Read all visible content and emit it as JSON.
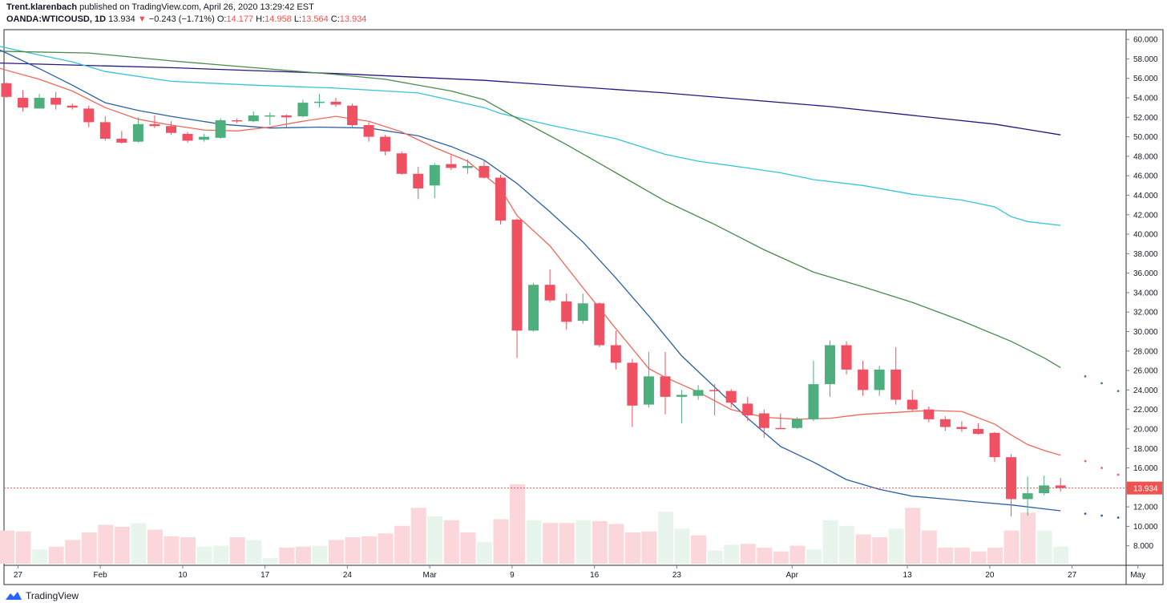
{
  "header": {
    "author": "Trent.klarenbach",
    "published_text": "published on TradingView.com, April 26, 2020 13:29:42 EST",
    "symbol": "OANDA:WTICOUSD, 1D",
    "last": "13.934",
    "change": "−0.243 (−1.71%)",
    "open_label": "O:",
    "open": "14.177",
    "high_label": "H:",
    "high": "14.958",
    "low_label": "L:",
    "low": "13.564",
    "close_label": "C:",
    "close": "13.934"
  },
  "footer": {
    "brand": "TradingView",
    "logo_icon": "tradingview-logo-icon"
  },
  "colors": {
    "up": "#4caf7d",
    "down": "#ef5062",
    "up_volume": "#e8f5ec",
    "down_volume": "#fbd6da",
    "ma_fast": "#f0685a",
    "ma_mid": "#2b5fa8",
    "ma_slow": "#4a8a4a",
    "ma_cyan": "#33c5d6",
    "ma_long": "#2a1580",
    "price_line": "#ef5350",
    "axis": "#787b86"
  },
  "chart_data": {
    "type": "candlestick",
    "y_axis": {
      "min": 6,
      "max": 61,
      "ticks": [
        "60.000",
        "58.000",
        "56.000",
        "54.000",
        "52.000",
        "50.000",
        "48.000",
        "46.000",
        "44.000",
        "42.000",
        "40.000",
        "38.000",
        "36.000",
        "34.000",
        "32.000",
        "30.000",
        "28.000",
        "26.000",
        "24.000",
        "22.000",
        "20.000",
        "18.000",
        "16.000",
        "14.000",
        "12.000",
        "10.000",
        "8.000"
      ]
    },
    "last_price_label": "13.934",
    "x_axis": {
      "labels": [
        {
          "text": "27",
          "idx": 0.7
        },
        {
          "text": "Feb",
          "idx": 5.7
        },
        {
          "text": "10",
          "idx": 10.7
        },
        {
          "text": "17",
          "idx": 15.7
        },
        {
          "text": "24",
          "idx": 20.7
        },
        {
          "text": "Mar",
          "idx": 25.7
        },
        {
          "text": "9",
          "idx": 30.7
        },
        {
          "text": "16",
          "idx": 35.7
        },
        {
          "text": "23",
          "idx": 40.7
        },
        {
          "text": "Apr",
          "idx": 47.7
        },
        {
          "text": "13",
          "idx": 54.7
        },
        {
          "text": "20",
          "idx": 59.7
        },
        {
          "text": "27",
          "idx": 64.7
        },
        {
          "text": "May",
          "idx": 68.7
        }
      ]
    },
    "candles": [
      [
        55.5,
        55.6,
        54.0,
        54.1
      ],
      [
        54.0,
        54.8,
        52.6,
        53.0
      ],
      [
        52.9,
        54.4,
        52.9,
        54.0
      ],
      [
        54.0,
        54.6,
        52.8,
        53.3
      ],
      [
        53.2,
        53.4,
        52.8,
        53.0
      ],
      [
        52.9,
        53.2,
        51.0,
        51.5
      ],
      [
        51.5,
        52.1,
        49.6,
        49.8
      ],
      [
        49.8,
        50.6,
        49.3,
        49.4
      ],
      [
        49.5,
        52.0,
        49.4,
        51.3
      ],
      [
        51.3,
        52.2,
        50.9,
        51.1
      ],
      [
        51.1,
        51.6,
        50.2,
        50.4
      ],
      [
        50.3,
        50.5,
        49.4,
        49.6
      ],
      [
        49.7,
        50.3,
        49.5,
        50.0
      ],
      [
        49.9,
        51.9,
        49.8,
        51.7
      ],
      [
        51.7,
        51.9,
        51.4,
        51.6
      ],
      [
        51.6,
        52.6,
        51.5,
        52.2
      ],
      [
        52.2,
        52.5,
        51.2,
        52.2
      ],
      [
        52.2,
        52.3,
        51.0,
        52.0
      ],
      [
        52.1,
        53.8,
        52.0,
        53.5
      ],
      [
        53.5,
        54.4,
        53.0,
        53.6
      ],
      [
        53.6,
        54.0,
        53.1,
        53.3
      ],
      [
        53.2,
        53.4,
        50.9,
        51.2
      ],
      [
        51.2,
        51.5,
        49.5,
        50.0
      ],
      [
        50.0,
        50.2,
        48.1,
        48.5
      ],
      [
        48.3,
        48.5,
        46.1,
        46.2
      ],
      [
        46.2,
        46.9,
        43.6,
        44.7
      ],
      [
        45.0,
        47.3,
        43.7,
        47.1
      ],
      [
        47.2,
        48.1,
        46.6,
        46.8
      ],
      [
        46.8,
        47.7,
        46.2,
        47.0
      ],
      [
        47.0,
        47.6,
        45.7,
        45.8
      ],
      [
        45.8,
        46.1,
        41.0,
        41.4
      ],
      [
        41.5,
        41.6,
        27.3,
        30.1
      ],
      [
        30.1,
        35.0,
        30.0,
        34.8
      ],
      [
        34.8,
        36.4,
        33.0,
        33.2
      ],
      [
        33.1,
        33.9,
        30.2,
        31.0
      ],
      [
        31.1,
        33.9,
        30.8,
        32.9
      ],
      [
        32.9,
        33.0,
        28.4,
        28.6
      ],
      [
        28.6,
        30.1,
        26.1,
        26.8
      ],
      [
        26.8,
        27.2,
        20.2,
        22.4
      ],
      [
        22.5,
        27.9,
        22.2,
        25.4
      ],
      [
        25.4,
        27.9,
        21.5,
        23.3
      ],
      [
        23.3,
        24.0,
        20.6,
        23.5
      ],
      [
        23.4,
        24.5,
        23.0,
        24.0
      ],
      [
        24.0,
        24.6,
        21.4,
        23.9
      ],
      [
        23.9,
        24.1,
        22.2,
        22.7
      ],
      [
        22.6,
        23.3,
        20.8,
        21.4
      ],
      [
        21.6,
        22.0,
        19.1,
        20.1
      ],
      [
        20.1,
        21.6,
        20.0,
        20.0
      ],
      [
        20.1,
        21.2,
        20.0,
        21.0
      ],
      [
        21.0,
        27.0,
        20.8,
        24.6
      ],
      [
        24.6,
        29.1,
        23.3,
        28.6
      ],
      [
        28.6,
        29.0,
        25.6,
        26.1
      ],
      [
        26.1,
        27.0,
        23.4,
        24.0
      ],
      [
        24.0,
        26.5,
        23.4,
        26.1
      ],
      [
        26.1,
        28.4,
        22.5,
        23.0
      ],
      [
        23.0,
        24.0,
        21.8,
        22.0
      ],
      [
        22.0,
        22.3,
        20.7,
        21.0
      ],
      [
        21.0,
        21.3,
        19.8,
        20.2
      ],
      [
        20.2,
        20.8,
        19.7,
        20.0
      ],
      [
        20.0,
        20.6,
        19.4,
        19.5
      ],
      [
        19.6,
        19.7,
        16.6,
        17.1
      ],
      [
        17.1,
        17.4,
        11.0,
        12.8
      ],
      [
        12.8,
        15.1,
        11.1,
        13.4
      ],
      [
        13.4,
        15.2,
        13.2,
        14.2
      ],
      [
        14.2,
        14.96,
        13.56,
        13.934
      ]
    ],
    "volume": [
      [
        0.35,
        "d"
      ],
      [
        0.34,
        "d"
      ],
      [
        0.15,
        "u"
      ],
      [
        0.18,
        "d"
      ],
      [
        0.25,
        "d"
      ],
      [
        0.33,
        "d"
      ],
      [
        0.41,
        "d"
      ],
      [
        0.39,
        "d"
      ],
      [
        0.43,
        "u"
      ],
      [
        0.36,
        "d"
      ],
      [
        0.29,
        "d"
      ],
      [
        0.28,
        "d"
      ],
      [
        0.18,
        "u"
      ],
      [
        0.19,
        "u"
      ],
      [
        0.28,
        "d"
      ],
      [
        0.25,
        "u"
      ],
      [
        0.06,
        "u"
      ],
      [
        0.17,
        "d"
      ],
      [
        0.18,
        "d"
      ],
      [
        0.19,
        "u"
      ],
      [
        0.25,
        "d"
      ],
      [
        0.28,
        "d"
      ],
      [
        0.29,
        "d"
      ],
      [
        0.32,
        "d"
      ],
      [
        0.4,
        "d"
      ],
      [
        0.59,
        "d"
      ],
      [
        0.5,
        "u"
      ],
      [
        0.46,
        "d"
      ],
      [
        0.33,
        "d"
      ],
      [
        0.23,
        "u"
      ],
      [
        0.47,
        "d"
      ],
      [
        0.84,
        "d"
      ],
      [
        0.46,
        "u"
      ],
      [
        0.43,
        "d"
      ],
      [
        0.43,
        "d"
      ],
      [
        0.46,
        "u"
      ],
      [
        0.45,
        "d"
      ],
      [
        0.42,
        "d"
      ],
      [
        0.33,
        "d"
      ],
      [
        0.34,
        "d"
      ],
      [
        0.55,
        "u"
      ],
      [
        0.37,
        "u"
      ],
      [
        0.3,
        "d"
      ],
      [
        0.14,
        "u"
      ],
      [
        0.2,
        "u"
      ],
      [
        0.21,
        "d"
      ],
      [
        0.17,
        "d"
      ],
      [
        0.13,
        "d"
      ],
      [
        0.19,
        "d"
      ],
      [
        0.15,
        "u"
      ],
      [
        0.46,
        "u"
      ],
      [
        0.4,
        "u"
      ],
      [
        0.31,
        "d"
      ],
      [
        0.28,
        "d"
      ],
      [
        0.37,
        "u"
      ],
      [
        0.59,
        "d"
      ],
      [
        0.35,
        "d"
      ],
      [
        0.17,
        "d"
      ],
      [
        0.17,
        "d"
      ],
      [
        0.13,
        "d"
      ],
      [
        0.17,
        "d"
      ],
      [
        0.35,
        "d"
      ],
      [
        0.54,
        "d"
      ],
      [
        0.35,
        "u"
      ],
      [
        0.18,
        "u"
      ]
    ],
    "moving_averages": [
      {
        "color_key": "ma_long",
        "points": [
          [
            -1,
            57.6
          ],
          [
            10,
            57.1
          ],
          [
            20,
            56.5
          ],
          [
            29,
            55.8
          ],
          [
            40,
            54.5
          ],
          [
            50,
            53.1
          ],
          [
            60,
            51.3
          ],
          [
            64,
            50.2
          ]
        ],
        "dots": []
      },
      {
        "color_key": "ma_cyan",
        "points": [
          [
            -1,
            59.5
          ],
          [
            2,
            58.4
          ],
          [
            4,
            57.7
          ],
          [
            6,
            56.7
          ],
          [
            10,
            55.7
          ],
          [
            15,
            55.3
          ],
          [
            20,
            55.0
          ],
          [
            25,
            54.5
          ],
          [
            29,
            53.0
          ],
          [
            30,
            52.4
          ],
          [
            33,
            51.2
          ],
          [
            37,
            49.8
          ],
          [
            40,
            48.2
          ],
          [
            42,
            47.5
          ],
          [
            45,
            46.8
          ],
          [
            47,
            46.3
          ],
          [
            49,
            45.6
          ],
          [
            52,
            45.0
          ],
          [
            55,
            44.1
          ],
          [
            58,
            43.5
          ],
          [
            60,
            42.8
          ],
          [
            61,
            41.8
          ],
          [
            62,
            41.3
          ],
          [
            64,
            40.9
          ]
        ],
        "dots": []
      },
      {
        "color_key": "ma_slow",
        "points": [
          [
            -1,
            58.8
          ],
          [
            5,
            58.6
          ],
          [
            10,
            57.8
          ],
          [
            15,
            57.1
          ],
          [
            20,
            56.4
          ],
          [
            23,
            55.9
          ],
          [
            27,
            54.7
          ],
          [
            29,
            53.8
          ],
          [
            31,
            51.9
          ],
          [
            34,
            49.2
          ],
          [
            37,
            46.3
          ],
          [
            40,
            43.4
          ],
          [
            43,
            41.0
          ],
          [
            46,
            38.4
          ],
          [
            49,
            36.1
          ],
          [
            52,
            34.6
          ],
          [
            55,
            33.0
          ],
          [
            58,
            31.1
          ],
          [
            61,
            29.0
          ],
          [
            63,
            27.3
          ],
          [
            64,
            26.3
          ]
        ],
        "dots": [
          [
            65.5,
            25.4
          ],
          [
            66.5,
            24.7
          ],
          [
            67.5,
            23.9
          ]
        ]
      },
      {
        "color_key": "ma_mid",
        "points": [
          [
            -1,
            59.4
          ],
          [
            2,
            57.0
          ],
          [
            4,
            55.3
          ],
          [
            6,
            53.5
          ],
          [
            8,
            52.7
          ],
          [
            10,
            52.1
          ],
          [
            13,
            51.3
          ],
          [
            16,
            50.9
          ],
          [
            19,
            51.0
          ],
          [
            22,
            50.9
          ],
          [
            25,
            50.1
          ],
          [
            27,
            49.0
          ],
          [
            29,
            47.6
          ],
          [
            31,
            45.2
          ],
          [
            33,
            42.3
          ],
          [
            35,
            39.2
          ],
          [
            37,
            35.5
          ],
          [
            39,
            31.6
          ],
          [
            41,
            27.5
          ],
          [
            43,
            24.3
          ],
          [
            45,
            21.1
          ],
          [
            47,
            18.2
          ],
          [
            49,
            16.6
          ],
          [
            51,
            14.8
          ],
          [
            53,
            13.8
          ],
          [
            55,
            13.1
          ],
          [
            57,
            12.8
          ],
          [
            59,
            12.5
          ],
          [
            61,
            12.2
          ],
          [
            63,
            11.8
          ],
          [
            64,
            11.6
          ]
        ],
        "dots": [
          [
            65.5,
            11.3
          ],
          [
            66.5,
            11.1
          ],
          [
            67.5,
            10.9
          ]
        ]
      },
      {
        "color_key": "ma_fast",
        "points": [
          [
            -1,
            57.3
          ],
          [
            2,
            55.9
          ],
          [
            4,
            54.7
          ],
          [
            6,
            53.0
          ],
          [
            8,
            51.8
          ],
          [
            10,
            51.2
          ],
          [
            12,
            50.7
          ],
          [
            14,
            50.6
          ],
          [
            16,
            51.0
          ],
          [
            18,
            51.6
          ],
          [
            20,
            52.1
          ],
          [
            22,
            51.6
          ],
          [
            24,
            50.5
          ],
          [
            26,
            48.9
          ],
          [
            28,
            47.5
          ],
          [
            30,
            44.7
          ],
          [
            31,
            41.9
          ],
          [
            33,
            38.8
          ],
          [
            35,
            34.5
          ],
          [
            37,
            30.3
          ],
          [
            39,
            26.2
          ],
          [
            40,
            25.3
          ],
          [
            42,
            23.8
          ],
          [
            44,
            22.0
          ],
          [
            46,
            21.2
          ],
          [
            48,
            21.0
          ],
          [
            50,
            21.1
          ],
          [
            52,
            21.5
          ],
          [
            54,
            21.7
          ],
          [
            56,
            21.9
          ],
          [
            58,
            21.8
          ],
          [
            60,
            20.5
          ],
          [
            61,
            19.4
          ],
          [
            62,
            18.4
          ],
          [
            63,
            17.8
          ],
          [
            64,
            17.3
          ]
        ],
        "dots": [
          [
            65.5,
            16.7
          ],
          [
            66.5,
            16.0
          ],
          [
            67.5,
            15.3
          ]
        ]
      }
    ]
  }
}
